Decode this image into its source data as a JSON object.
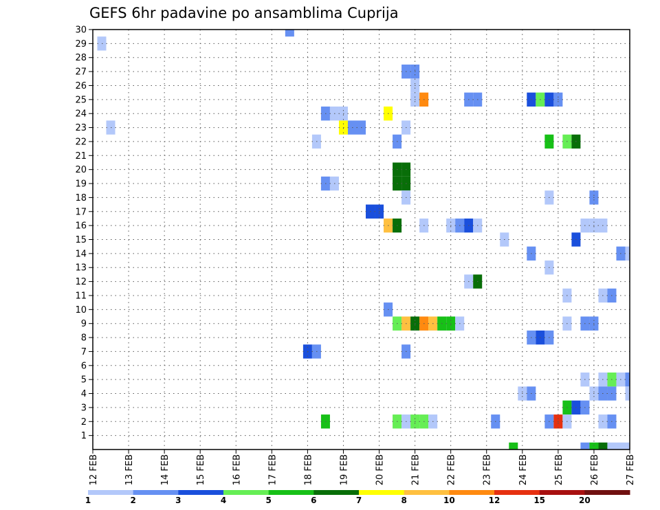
{
  "chart_data": {
    "type": "heatmap",
    "title": "GEFS 6hr padavine po ansamblima Cuprija",
    "xlabel": "",
    "ylabel": "",
    "x_ticks": [
      "12 FEB",
      "13 FEB",
      "14 FEB",
      "15 FEB",
      "16 FEB",
      "17 FEB",
      "18 FEB",
      "19 FEB",
      "20 FEB",
      "21 FEB",
      "22 FEB",
      "23 FEB",
      "24 FEB",
      "25 FEB",
      "26 FEB",
      "27 FEB"
    ],
    "y_ticks": [
      1,
      2,
      3,
      4,
      5,
      6,
      7,
      8,
      9,
      10,
      11,
      12,
      13,
      14,
      15,
      16,
      17,
      18,
      19,
      20,
      21,
      22,
      23,
      24,
      25,
      26,
      27,
      28,
      29,
      30
    ],
    "xlim": [
      0,
      15
    ],
    "ylim": [
      0,
      30
    ],
    "grid": true,
    "colorbar": {
      "labels": [
        "1",
        "2",
        "3",
        "4",
        "5",
        "6",
        "7",
        "8",
        "10",
        "12",
        "15",
        "20"
      ],
      "colors": [
        "#b3c8fa",
        "#6690f2",
        "#1a4fdc",
        "#66ee55",
        "#17c017",
        "#086e08",
        "#ffff00",
        "#ffc040",
        "#ff8a10",
        "#e63010",
        "#a81010",
        "#701010"
      ]
    },
    "cells": [
      {
        "d": 0.25,
        "m": 29,
        "c": 1
      },
      {
        "d": 5.5,
        "m": 30,
        "c": 2
      },
      {
        "d": 0.5,
        "m": 23,
        "c": 1
      },
      {
        "d": 8.75,
        "m": 27,
        "c": 2
      },
      {
        "d": 9.0,
        "m": 27,
        "c": 2
      },
      {
        "d": 9.0,
        "m": 26,
        "c": 1
      },
      {
        "d": 9.0,
        "m": 25,
        "c": 1
      },
      {
        "d": 9.25,
        "m": 25,
        "c": 9
      },
      {
        "d": 10.5,
        "m": 25,
        "c": 2
      },
      {
        "d": 10.75,
        "m": 25,
        "c": 2
      },
      {
        "d": 12.25,
        "m": 25,
        "c": 3
      },
      {
        "d": 12.5,
        "m": 25,
        "c": 4
      },
      {
        "d": 12.75,
        "m": 25,
        "c": 3
      },
      {
        "d": 13.0,
        "m": 25,
        "c": 2
      },
      {
        "d": 6.5,
        "m": 24,
        "c": 2
      },
      {
        "d": 6.75,
        "m": 24,
        "c": 1
      },
      {
        "d": 7.0,
        "m": 24,
        "c": 1
      },
      {
        "d": 8.25,
        "m": 24,
        "c": 7
      },
      {
        "d": 7.0,
        "m": 23,
        "c": 7
      },
      {
        "d": 7.25,
        "m": 23,
        "c": 2
      },
      {
        "d": 7.5,
        "m": 23,
        "c": 2
      },
      {
        "d": 8.75,
        "m": 23,
        "c": 1
      },
      {
        "d": 6.25,
        "m": 22,
        "c": 1
      },
      {
        "d": 8.5,
        "m": 22,
        "c": 2
      },
      {
        "d": 12.75,
        "m": 22,
        "c": 5
      },
      {
        "d": 13.25,
        "m": 22,
        "c": 4
      },
      {
        "d": 13.5,
        "m": 22,
        "c": 6
      },
      {
        "d": 8.5,
        "m": 20,
        "c": 6
      },
      {
        "d": 8.75,
        "m": 20,
        "c": 6
      },
      {
        "d": 6.5,
        "m": 19,
        "c": 2
      },
      {
        "d": 6.75,
        "m": 19,
        "c": 1
      },
      {
        "d": 8.5,
        "m": 19,
        "c": 6
      },
      {
        "d": 8.75,
        "m": 19,
        "c": 6
      },
      {
        "d": 8.75,
        "m": 18,
        "c": 1
      },
      {
        "d": 12.75,
        "m": 18,
        "c": 1
      },
      {
        "d": 14.0,
        "m": 18,
        "c": 2
      },
      {
        "d": 7.75,
        "m": 17,
        "c": 3
      },
      {
        "d": 8.0,
        "m": 17,
        "c": 3
      },
      {
        "d": 8.25,
        "m": 16,
        "c": 8
      },
      {
        "d": 8.5,
        "m": 16,
        "c": 6
      },
      {
        "d": 9.25,
        "m": 16,
        "c": 1
      },
      {
        "d": 10.0,
        "m": 16,
        "c": 1
      },
      {
        "d": 10.25,
        "m": 16,
        "c": 2
      },
      {
        "d": 10.5,
        "m": 16,
        "c": 3
      },
      {
        "d": 10.75,
        "m": 16,
        "c": 1
      },
      {
        "d": 13.75,
        "m": 16,
        "c": 1
      },
      {
        "d": 14.0,
        "m": 16,
        "c": 1
      },
      {
        "d": 14.25,
        "m": 16,
        "c": 1
      },
      {
        "d": 11.5,
        "m": 15,
        "c": 1
      },
      {
        "d": 13.5,
        "m": 15,
        "c": 3
      },
      {
        "d": 12.25,
        "m": 14,
        "c": 2
      },
      {
        "d": 14.75,
        "m": 14,
        "c": 2
      },
      {
        "d": 15.0,
        "m": 14,
        "c": 1
      },
      {
        "d": 12.75,
        "m": 13,
        "c": 1
      },
      {
        "d": 10.5,
        "m": 12,
        "c": 1
      },
      {
        "d": 10.75,
        "m": 12,
        "c": 6
      },
      {
        "d": 13.25,
        "m": 11,
        "c": 1
      },
      {
        "d": 14.25,
        "m": 11,
        "c": 1
      },
      {
        "d": 14.5,
        "m": 11,
        "c": 2
      },
      {
        "d": 8.25,
        "m": 10,
        "c": 2
      },
      {
        "d": 8.5,
        "m": 9,
        "c": 4
      },
      {
        "d": 8.75,
        "m": 9,
        "c": 8
      },
      {
        "d": 9.0,
        "m": 9,
        "c": 6
      },
      {
        "d": 9.25,
        "m": 9,
        "c": 9
      },
      {
        "d": 9.5,
        "m": 9,
        "c": 8
      },
      {
        "d": 9.75,
        "m": 9,
        "c": 5
      },
      {
        "d": 10.0,
        "m": 9,
        "c": 5
      },
      {
        "d": 10.25,
        "m": 9,
        "c": 1
      },
      {
        "d": 13.25,
        "m": 9,
        "c": 1
      },
      {
        "d": 13.75,
        "m": 9,
        "c": 2
      },
      {
        "d": 14.0,
        "m": 9,
        "c": 2
      },
      {
        "d": 12.25,
        "m": 8,
        "c": 2
      },
      {
        "d": 12.5,
        "m": 8,
        "c": 3
      },
      {
        "d": 12.75,
        "m": 8,
        "c": 2
      },
      {
        "d": 6.0,
        "m": 7,
        "c": 3
      },
      {
        "d": 6.25,
        "m": 7,
        "c": 2
      },
      {
        "d": 8.75,
        "m": 7,
        "c": 2
      },
      {
        "d": 13.75,
        "m": 5,
        "c": 1
      },
      {
        "d": 14.25,
        "m": 5,
        "c": 1
      },
      {
        "d": 14.5,
        "m": 5,
        "c": 4
      },
      {
        "d": 14.75,
        "m": 5,
        "c": 1
      },
      {
        "d": 15.0,
        "m": 5,
        "c": 2
      },
      {
        "d": 12.0,
        "m": 4,
        "c": 1
      },
      {
        "d": 12.25,
        "m": 4,
        "c": 2
      },
      {
        "d": 14.0,
        "m": 4,
        "c": 1
      },
      {
        "d": 14.25,
        "m": 4,
        "c": 2
      },
      {
        "d": 14.5,
        "m": 4,
        "c": 2
      },
      {
        "d": 15.0,
        "m": 4,
        "c": 1
      },
      {
        "d": 13.25,
        "m": 3,
        "c": 5
      },
      {
        "d": 13.5,
        "m": 3,
        "c": 3
      },
      {
        "d": 13.75,
        "m": 3,
        "c": 2
      },
      {
        "d": 6.5,
        "m": 2,
        "c": 5
      },
      {
        "d": 8.5,
        "m": 2,
        "c": 4
      },
      {
        "d": 8.75,
        "m": 2,
        "c": 1
      },
      {
        "d": 9.0,
        "m": 2,
        "c": 4
      },
      {
        "d": 9.25,
        "m": 2,
        "c": 4
      },
      {
        "d": 9.5,
        "m": 2,
        "c": 1
      },
      {
        "d": 11.25,
        "m": 2,
        "c": 2
      },
      {
        "d": 12.75,
        "m": 2,
        "c": 2
      },
      {
        "d": 13.0,
        "m": 2,
        "c": 10
      },
      {
        "d": 13.25,
        "m": 2,
        "c": 1
      },
      {
        "d": 14.25,
        "m": 2,
        "c": 1
      },
      {
        "d": 14.5,
        "m": 2,
        "c": 2
      },
      {
        "d": 11.75,
        "m": 0,
        "c": 5
      },
      {
        "d": 13.75,
        "m": 0,
        "c": 2
      },
      {
        "d": 14.0,
        "m": 0,
        "c": 5
      },
      {
        "d": 14.25,
        "m": 0,
        "c": 6
      },
      {
        "d": 14.5,
        "m": 0,
        "c": 1
      },
      {
        "d": 14.75,
        "m": 0,
        "c": 1
      },
      {
        "d": 15.0,
        "m": 0,
        "c": 1
      }
    ]
  }
}
